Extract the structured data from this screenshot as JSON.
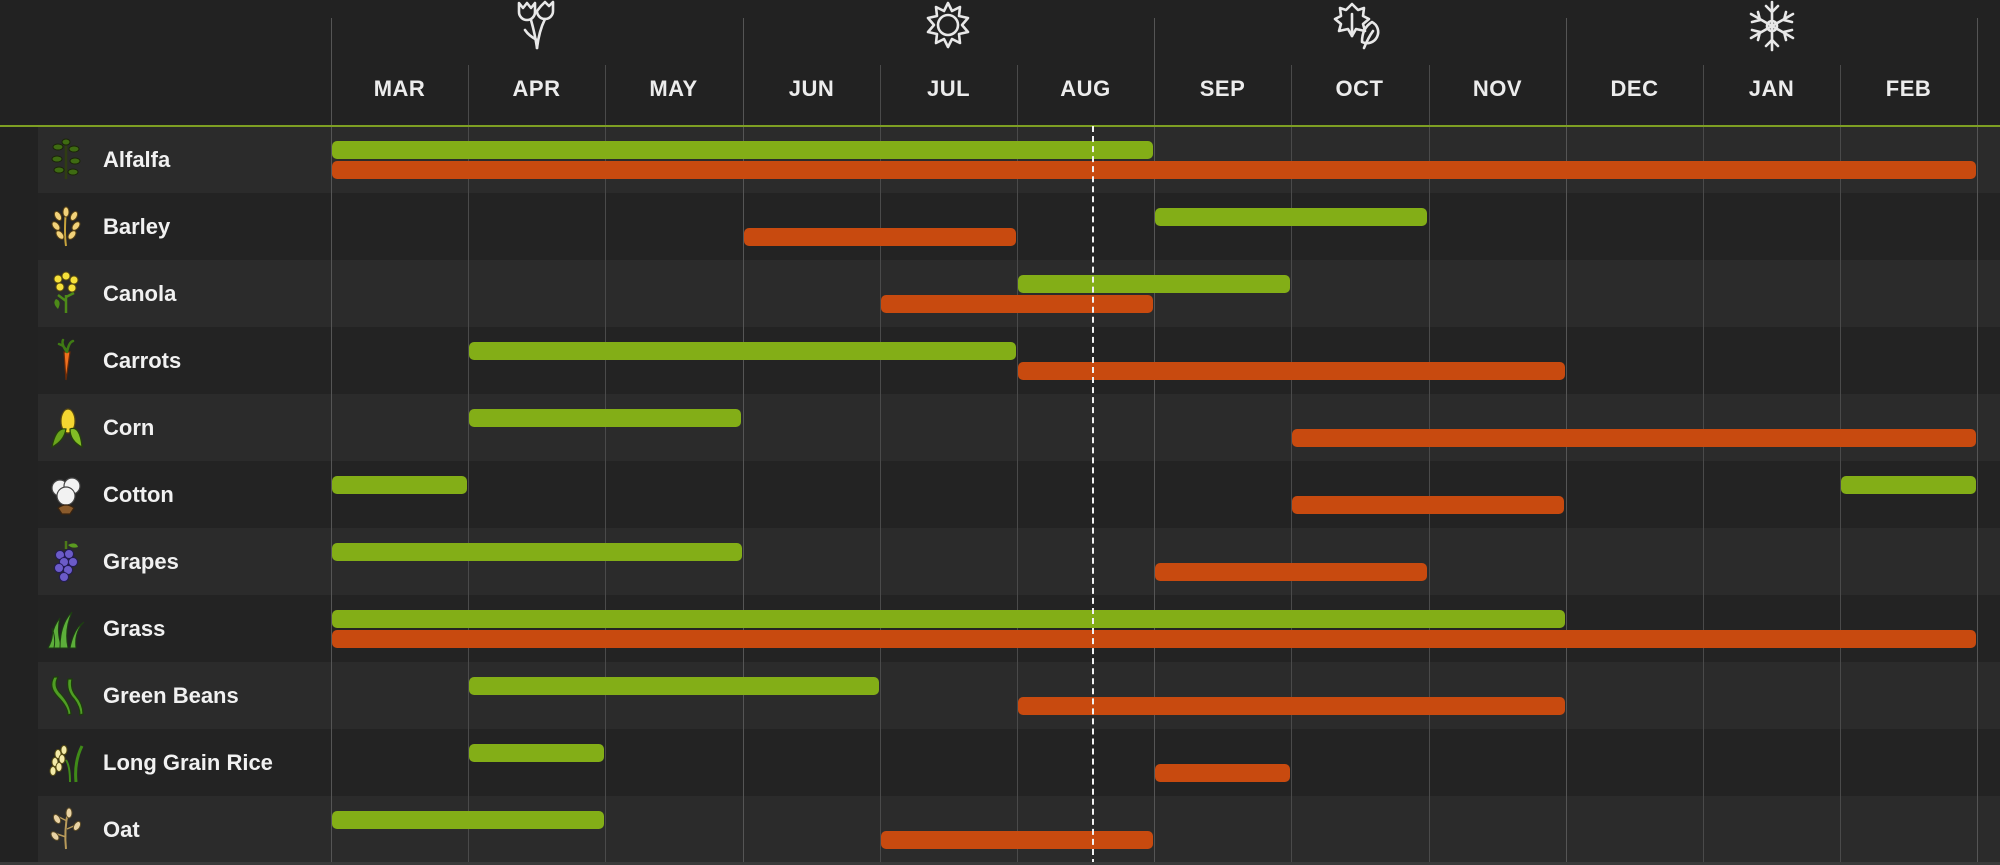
{
  "colors": {
    "background": "#222222",
    "row_shade": "#2b2b2b",
    "planting_bar": "#83ae17",
    "harvest_bar": "#c84a0f",
    "header_divider": "#7e9f23",
    "today_marker": "#f2f2f2"
  },
  "months": [
    "MAR",
    "APR",
    "MAY",
    "JUN",
    "JUL",
    "AUG",
    "SEP",
    "OCT",
    "NOV",
    "DEC",
    "JAN",
    "FEB"
  ],
  "seasons": [
    {
      "icon": "spring-flower-icon",
      "month_index": 1
    },
    {
      "icon": "summer-sun-icon",
      "month_index": 4
    },
    {
      "icon": "fall-leaves-icon",
      "month_index": 7
    },
    {
      "icon": "winter-snowflake-icon",
      "month_index": 10
    }
  ],
  "today_month_position": 5.55,
  "crops": [
    {
      "name": "Alfalfa",
      "icon": "alfalfa-icon",
      "planting": [
        [
          0,
          6
        ]
      ],
      "harvest": [
        [
          0,
          12
        ]
      ]
    },
    {
      "name": "Barley",
      "icon": "barley-icon",
      "planting": [
        [
          6,
          8
        ]
      ],
      "harvest": [
        [
          3,
          5
        ]
      ]
    },
    {
      "name": "Canola",
      "icon": "canola-icon",
      "planting": [
        [
          5,
          7
        ]
      ],
      "harvest": [
        [
          4,
          6
        ]
      ]
    },
    {
      "name": "Carrots",
      "icon": "carrot-icon",
      "planting": [
        [
          1,
          5
        ]
      ],
      "harvest": [
        [
          5,
          9
        ]
      ]
    },
    {
      "name": "Corn",
      "icon": "corn-icon",
      "planting": [
        [
          1,
          3
        ]
      ],
      "harvest": [
        [
          7,
          12
        ]
      ]
    },
    {
      "name": "Cotton",
      "icon": "cotton-icon",
      "planting": [
        [
          0,
          1
        ],
        [
          11,
          12
        ]
      ],
      "harvest": [
        [
          7,
          9
        ]
      ]
    },
    {
      "name": "Grapes",
      "icon": "grapes-icon",
      "planting": [
        [
          0,
          3
        ]
      ],
      "harvest": [
        [
          6,
          8
        ]
      ]
    },
    {
      "name": "Grass",
      "icon": "grass-icon",
      "planting": [
        [
          0,
          9
        ]
      ],
      "harvest": [
        [
          0,
          12
        ]
      ]
    },
    {
      "name": "Green Beans",
      "icon": "green-beans-icon",
      "planting": [
        [
          1,
          4
        ]
      ],
      "harvest": [
        [
          5,
          9
        ]
      ]
    },
    {
      "name": "Long Grain Rice",
      "icon": "rice-icon",
      "planting": [
        [
          1,
          2
        ]
      ],
      "harvest": [
        [
          6,
          7
        ]
      ]
    },
    {
      "name": "Oat",
      "icon": "oat-icon",
      "planting": [
        [
          0,
          2
        ]
      ],
      "harvest": [
        [
          4,
          6
        ]
      ]
    }
  ]
}
